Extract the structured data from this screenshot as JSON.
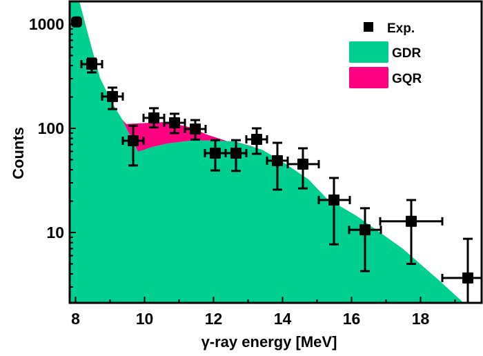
{
  "chart_data": {
    "type": "scatter",
    "title": "",
    "xlabel": "γ-ray energy [MeV]",
    "ylabel": "Counts",
    "xlim": [
      7.83,
      19.77
    ],
    "ylim": [
      2.1,
      1660
    ],
    "yscale": "log",
    "grid": false,
    "legend_position": "top-right",
    "x_ticks": [
      8,
      10,
      12,
      14,
      16,
      18
    ],
    "x_tick_labels": [
      "8",
      "10",
      "12",
      "14",
      "16",
      "18"
    ],
    "y_ticks": [
      10,
      100,
      1000
    ],
    "y_tick_labels": [
      "10",
      "100",
      "1000"
    ],
    "legend": [
      "Exp.",
      "GDR",
      "GQR"
    ],
    "colors": {
      "GDR": "#00D08F",
      "GQR": "#FF0080",
      "Exp.": "#000000"
    },
    "series": [
      {
        "name": "Exp.",
        "kind": "points",
        "points": [
          {
            "x": 8.03,
            "y": 1050
          },
          {
            "x": 8.47,
            "y": 413,
            "xerr": [
              8.17,
              8.77
            ],
            "yerr": [
              344,
              467
            ]
          },
          {
            "x": 9.07,
            "y": 202,
            "xerr": [
              8.77,
              9.37
            ],
            "yerr": [
              153,
              246
            ]
          },
          {
            "x": 9.67,
            "y": 76,
            "xerr": [
              9.37,
              9.97
            ],
            "yerr": [
              44,
              106
            ]
          },
          {
            "x": 10.27,
            "y": 126,
            "xerr": [
              9.97,
              10.57
            ],
            "yerr": [
              102,
              156
            ]
          },
          {
            "x": 10.87,
            "y": 113,
            "xerr": [
              10.57,
              11.17
            ],
            "yerr": [
              90,
              138
            ]
          },
          {
            "x": 11.47,
            "y": 98.5,
            "xerr": [
              11.17,
              11.77
            ],
            "yerr": [
              78,
              120
            ]
          },
          {
            "x": 12.05,
            "y": 57.8,
            "xerr": [
              11.75,
              12.35
            ],
            "yerr": [
              39.4,
              77
            ]
          },
          {
            "x": 12.65,
            "y": 57.8,
            "xerr": [
              12.35,
              12.95
            ],
            "yerr": [
              39,
              77
            ]
          },
          {
            "x": 13.25,
            "y": 78.4,
            "xerr": [
              12.95,
              13.55
            ],
            "yerr": [
              56.9,
              100
            ]
          },
          {
            "x": 13.85,
            "y": 48.9,
            "xerr": [
              13.55,
              14.15
            ],
            "yerr": [
              25.8,
              72.6
            ]
          },
          {
            "x": 14.59,
            "y": 45.3,
            "xerr": [
              14.15,
              15.05
            ],
            "yerr": [
              26.5,
              64.3
            ]
          },
          {
            "x": 15.49,
            "y": 20.5,
            "xerr": [
              15.05,
              15.95
            ],
            "yerr": [
              7.7,
              33.4
            ]
          },
          {
            "x": 16.39,
            "y": 10.6,
            "xerr": [
              15.93,
              16.85
            ],
            "yerr": [
              4.26,
              17.1
            ]
          },
          {
            "x": 17.73,
            "y": 12.8,
            "xerr": [
              16.83,
              18.63
            ],
            "yerr": [
              5.0,
              20.5
            ]
          },
          {
            "x": 19.37,
            "y": 3.66,
            "xerr": [
              18.63,
              20.2
            ],
            "yerr": [
              1.5,
              8.7
            ]
          }
        ]
      },
      {
        "name": "GDR",
        "kind": "area",
        "x": [
          8.1,
          8.47,
          8.71,
          9.07,
          9.35,
          9.81,
          10.21,
          10.67,
          11.47,
          12.61,
          13.41,
          14.07,
          14.75,
          15.27,
          16.15,
          17.47,
          18.55,
          19.25
        ],
        "y": [
          1706,
          586,
          304,
          173,
          122,
          59.6,
          66,
          71.5,
          77,
          74.8,
          62.3,
          46,
          32.4,
          21.4,
          14.4,
          7.05,
          3.44,
          2.11
        ]
      },
      {
        "name": "GQR",
        "kind": "stacked-area-top",
        "x": [
          9.35,
          9.47,
          10.61,
          11.35,
          11.81,
          12.75
        ],
        "y": [
          122,
          110,
          115,
          102,
          87,
          69
        ]
      }
    ]
  }
}
